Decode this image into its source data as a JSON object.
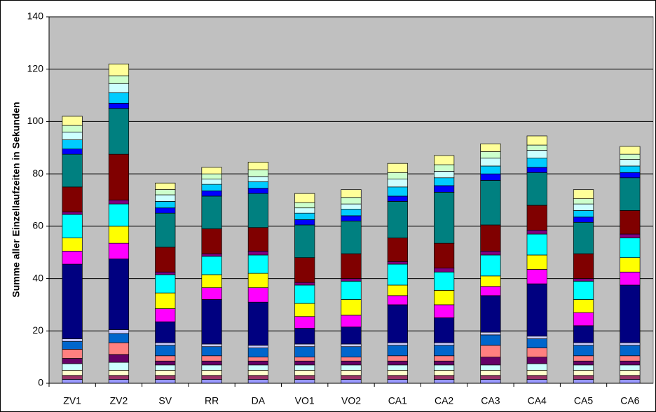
{
  "chart_data": {
    "type": "stacked_bar",
    "y_label": "Summe aller Einzellaufzeiten in Sekunden",
    "categories": [
      "ZV1",
      "ZV2",
      "SV",
      "RR",
      "DA",
      "VO1",
      "VO2",
      "CA1",
      "CA2",
      "CA3",
      "CA4",
      "CA5",
      "CA6"
    ],
    "ylim": [
      0,
      140
    ],
    "yticks": [
      0,
      20,
      40,
      60,
      80,
      100,
      120,
      140
    ],
    "grid": true,
    "series": [
      {
        "color": "#9999FF",
        "values": [
          1.5,
          1.5,
          1.5,
          1.5,
          1.5,
          1.5,
          1.5,
          1.5,
          1.5,
          1.5,
          1.5,
          1.5,
          1.5
        ]
      },
      {
        "color": "#993366",
        "values": [
          1.5,
          1.5,
          1.5,
          1.5,
          1.5,
          1.5,
          1.5,
          1.5,
          1.5,
          1.5,
          1.5,
          1.5,
          1.5
        ]
      },
      {
        "color": "#FFFFCC",
        "values": [
          2,
          2,
          2,
          2,
          2,
          2,
          2,
          2,
          2,
          2,
          2,
          2,
          2
        ]
      },
      {
        "color": "#CCFFFF",
        "values": [
          2.5,
          3,
          2,
          2,
          2,
          2,
          2,
          2,
          2,
          2,
          2.5,
          2,
          2
        ]
      },
      {
        "color": "#660066",
        "values": [
          2,
          3,
          1.5,
          1.5,
          1.5,
          1.5,
          1.5,
          1.5,
          1.5,
          3,
          2.5,
          1.5,
          1.5
        ]
      },
      {
        "color": "#FF8080",
        "values": [
          3.5,
          4.5,
          2,
          2,
          1.5,
          1.5,
          1.5,
          2,
          2,
          4.5,
          3.5,
          2,
          2
        ]
      },
      {
        "color": "#0066CC",
        "values": [
          3,
          3.5,
          4,
          3.5,
          3.5,
          4,
          4,
          4,
          4,
          4,
          3.5,
          4,
          4
        ]
      },
      {
        "color": "#CCCCFF",
        "values": [
          1,
          1.5,
          1,
          1,
          1,
          1,
          1,
          1,
          1,
          1,
          1,
          1,
          1
        ]
      },
      {
        "color": "#000080",
        "values": [
          28.5,
          27,
          8,
          17,
          16.5,
          6,
          6.5,
          14.5,
          9.5,
          14,
          20,
          6.5,
          22
        ]
      },
      {
        "color": "#FF00FF",
        "values": [
          5,
          6,
          5,
          4.5,
          5.5,
          4.5,
          4.5,
          3.5,
          5,
          3.5,
          5.5,
          5,
          5
        ]
      },
      {
        "color": "#FFFF00",
        "values": [
          5,
          6.5,
          6,
          5,
          5.5,
          5,
          6,
          4,
          5.5,
          4,
          5.5,
          5,
          5.5
        ]
      },
      {
        "color": "#00FFFF",
        "values": [
          9,
          8.5,
          7,
          7,
          7,
          7,
          7,
          8,
          7,
          8,
          8,
          7,
          7.5
        ]
      },
      {
        "color": "#800080",
        "values": [
          1,
          1.5,
          1,
          1,
          1.5,
          1,
          1,
          1,
          1.5,
          1.5,
          1.5,
          1,
          1.5
        ]
      },
      {
        "color": "#800000",
        "values": [
          9.5,
          17.5,
          9.5,
          9.5,
          9,
          9.5,
          9.5,
          9,
          9.5,
          10,
          9.5,
          9.5,
          9
        ]
      },
      {
        "color": "#008080",
        "values": [
          12.5,
          17.5,
          13,
          12.5,
          13,
          12.5,
          12.5,
          14,
          19.5,
          17,
          12.5,
          12,
          12.5
        ]
      },
      {
        "color": "#0000FF",
        "values": [
          2,
          2,
          2,
          2,
          2,
          2,
          2,
          2,
          2.5,
          2.5,
          2,
          2,
          2
        ]
      },
      {
        "color": "#00CCFF",
        "values": [
          3.5,
          4,
          2.5,
          2.5,
          2.5,
          2.5,
          2.5,
          3.5,
          3,
          3,
          3.5,
          2.5,
          2.5
        ]
      },
      {
        "color": "#CCFFFF",
        "values": [
          3,
          3.5,
          2.5,
          2,
          2,
          2,
          2,
          3,
          2.5,
          3,
          3,
          2.5,
          2.5
        ]
      },
      {
        "color": "#CCFFCC",
        "values": [
          2.5,
          3,
          2,
          2,
          2.5,
          2,
          2.5,
          2.5,
          2.5,
          2.5,
          2,
          2,
          2
        ]
      },
      {
        "color": "#FFFF99",
        "values": [
          3.5,
          4.5,
          2.5,
          2.5,
          3,
          3.5,
          3,
          3.5,
          3.5,
          3,
          3.5,
          3.5,
          3
        ]
      }
    ]
  }
}
